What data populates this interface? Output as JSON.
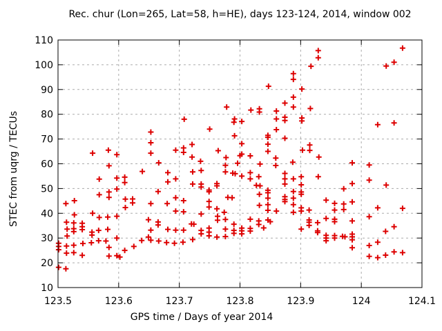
{
  "title": "Rec. chur (Lon=265, Lat=58, h=HE), days 123-124, 2014, window 002",
  "chart_data": {
    "type": "scatter",
    "title": "Rec. chur (Lon=265, Lat=58, h=HE), days 123-124, 2014, window 002",
    "xlabel": "GPS time / Days of year 2014",
    "ylabel": "STEC from uqrg / TECUs",
    "xlim": [
      123.5,
      124.1
    ],
    "ylim": [
      10,
      110
    ],
    "grid": true,
    "grid_color": "#aaaaaa",
    "legend": "none",
    "marker": {
      "shape": "plus",
      "color": "#dd0000",
      "size": 8,
      "stroke": 2
    },
    "xticks": {
      "values": [
        123.5,
        123.6,
        123.7,
        123.8,
        123.9,
        124.0,
        124.1
      ],
      "labels": [
        "123.5",
        "123.6",
        "123.7",
        "123.8",
        "123.9",
        "124",
        "124.1"
      ]
    },
    "yticks": {
      "values": [
        10,
        20,
        30,
        40,
        50,
        60,
        70,
        80,
        90,
        100,
        110
      ],
      "labels": [
        "10",
        "20",
        "30",
        "40",
        "50",
        "60",
        "70",
        "80",
        "90",
        "100",
        "110"
      ]
    },
    "points": [
      [
        123.557,
        64.3
      ],
      [
        123.583,
        65.5
      ],
      [
        123.597,
        63.7
      ],
      [
        123.778,
        82.9
      ],
      [
        123.708,
        78.0
      ],
      [
        123.791,
        78.1
      ],
      [
        123.79,
        76.8
      ],
      [
        123.75,
        74.0
      ],
      [
        123.653,
        72.8
      ],
      [
        123.791,
        71.3
      ],
      [
        123.653,
        68.5
      ],
      [
        123.694,
        65.5
      ],
      [
        123.707,
        66.4
      ],
      [
        123.707,
        64.6
      ],
      [
        123.721,
        67.8
      ],
      [
        123.653,
        64.3
      ],
      [
        123.764,
        65.3
      ],
      [
        123.721,
        62.7
      ],
      [
        123.735,
        61.0
      ],
      [
        123.777,
        62.5
      ],
      [
        123.666,
        60.4
      ],
      [
        123.796,
        60.2
      ],
      [
        123.929,
        105.7
      ],
      [
        123.929,
        102.8
      ],
      [
        123.917,
        99.4
      ],
      [
        123.888,
        96.4
      ],
      [
        123.888,
        94.1
      ],
      [
        123.847,
        91.3
      ],
      [
        123.902,
        90.2
      ],
      [
        123.888,
        86.9
      ],
      [
        123.874,
        84.5
      ],
      [
        123.888,
        82.9
      ],
      [
        123.818,
        81.7
      ],
      [
        123.832,
        82.2
      ],
      [
        123.832,
        80.9
      ],
      [
        123.86,
        81.3
      ],
      [
        123.916,
        82.3
      ],
      [
        123.86,
        78.1
      ],
      [
        123.874,
        78.8
      ],
      [
        123.874,
        77.5
      ],
      [
        123.803,
        77.1
      ],
      [
        123.902,
        78.5
      ],
      [
        123.902,
        77.3
      ],
      [
        123.86,
        73.8
      ],
      [
        123.846,
        71.5
      ],
      [
        123.846,
        70.7
      ],
      [
        123.874,
        70.3
      ],
      [
        123.803,
        68.1
      ],
      [
        123.846,
        67.9
      ],
      [
        123.915,
        67.6
      ],
      [
        123.846,
        65.0
      ],
      [
        123.903,
        65.5
      ],
      [
        123.915,
        65.4
      ],
      [
        123.803,
        63.9
      ],
      [
        123.8,
        63.3
      ],
      [
        123.817,
        63.2
      ],
      [
        123.93,
        62.7
      ],
      [
        123.859,
        62.3
      ],
      [
        124.068,
        106.7
      ],
      [
        124.054,
        101.0
      ],
      [
        124.041,
        99.5
      ],
      [
        124.027,
        75.8
      ],
      [
        124.054,
        76.5
      ],
      [
        123.584,
        59.2
      ],
      [
        123.639,
        56.9
      ],
      [
        123.568,
        53.8
      ],
      [
        123.597,
        54.2
      ],
      [
        123.61,
        54.6
      ],
      [
        123.61,
        52.4
      ],
      [
        123.568,
        47.5
      ],
      [
        123.584,
        48.6
      ],
      [
        123.584,
        46.4
      ],
      [
        123.597,
        49.8
      ],
      [
        123.513,
        43.9
      ],
      [
        123.527,
        45.1
      ],
      [
        123.623,
        45.8
      ],
      [
        123.623,
        44.2
      ],
      [
        123.611,
        42.3
      ],
      [
        123.611,
        45.7
      ],
      [
        123.527,
        39.4
      ],
      [
        123.557,
        40.0
      ],
      [
        123.568,
        38.3
      ],
      [
        123.582,
        38.5
      ],
      [
        123.597,
        38.8
      ],
      [
        123.515,
        33.6
      ],
      [
        123.526,
        33.8
      ],
      [
        123.526,
        32.6
      ],
      [
        123.54,
        36.0
      ],
      [
        123.54,
        34.6
      ],
      [
        123.54,
        33.4
      ],
      [
        123.515,
        30.8
      ],
      [
        123.556,
        32.4
      ],
      [
        123.556,
        31.2
      ],
      [
        123.567,
        33.1
      ],
      [
        123.582,
        33.5
      ],
      [
        123.597,
        30.0
      ],
      [
        123.501,
        27.9
      ],
      [
        123.501,
        26.6
      ],
      [
        123.501,
        25.3
      ],
      [
        123.514,
        26.8
      ],
      [
        123.514,
        23.9
      ],
      [
        123.513,
        17.6
      ],
      [
        123.501,
        18.2
      ],
      [
        123.526,
        36.1
      ],
      [
        123.514,
        36.4
      ],
      [
        123.526,
        27.1
      ],
      [
        123.526,
        24.1
      ],
      [
        123.541,
        27.8
      ],
      [
        123.54,
        23.0
      ],
      [
        123.555,
        28.1
      ],
      [
        123.567,
        28.9
      ],
      [
        123.579,
        28.8
      ],
      [
        123.584,
        26.2
      ],
      [
        123.584,
        22.7
      ],
      [
        123.597,
        22.9
      ],
      [
        123.602,
        22.3
      ],
      [
        123.61,
        25.0
      ],
      [
        123.625,
        26.6
      ],
      [
        123.638,
        29.0
      ],
      [
        123.653,
        29.1
      ],
      [
        123.681,
        56.4
      ],
      [
        123.681,
        52.7
      ],
      [
        123.694,
        53.9
      ],
      [
        123.722,
        56.7
      ],
      [
        123.736,
        57.3
      ],
      [
        123.776,
        59.4
      ],
      [
        123.776,
        56.7
      ],
      [
        123.788,
        56.2
      ],
      [
        123.792,
        56.0
      ],
      [
        123.722,
        51.8
      ],
      [
        123.736,
        51.8
      ],
      [
        123.736,
        50.6
      ],
      [
        123.762,
        52.0
      ],
      [
        123.762,
        51.1
      ],
      [
        123.749,
        49.4
      ],
      [
        123.749,
        48.7
      ],
      [
        123.665,
        48.8
      ],
      [
        123.694,
        46.3
      ],
      [
        123.707,
        45.1
      ],
      [
        123.78,
        46.4
      ],
      [
        123.787,
        46.3
      ],
      [
        123.653,
        43.9
      ],
      [
        123.68,
        43.9
      ],
      [
        123.749,
        44.8
      ],
      [
        123.749,
        42.5
      ],
      [
        123.762,
        41.8
      ],
      [
        123.694,
        40.9
      ],
      [
        123.707,
        40.6
      ],
      [
        123.736,
        39.7
      ],
      [
        123.649,
        37.4
      ],
      [
        123.653,
        33.2
      ],
      [
        123.649,
        30.4
      ],
      [
        123.665,
        36.5
      ],
      [
        123.665,
        35.3
      ],
      [
        123.681,
        33.5
      ],
      [
        123.694,
        33.2
      ],
      [
        123.707,
        33.2
      ],
      [
        123.72,
        35.7
      ],
      [
        123.724,
        35.6
      ],
      [
        123.736,
        33.1
      ],
      [
        123.736,
        31.7
      ],
      [
        123.749,
        34.0
      ],
      [
        123.749,
        32.4
      ],
      [
        123.749,
        30.9
      ],
      [
        123.762,
        30.4
      ],
      [
        123.763,
        38.8
      ],
      [
        123.763,
        37.2
      ],
      [
        123.776,
        37.5
      ],
      [
        123.776,
        33.6
      ],
      [
        123.776,
        30.6
      ],
      [
        123.79,
        35.6
      ],
      [
        123.79,
        33.1
      ],
      [
        123.79,
        31.9
      ],
      [
        123.85,
        36.6
      ],
      [
        123.722,
        29.4
      ],
      [
        123.666,
        28.8
      ],
      [
        123.679,
        28.2
      ],
      [
        123.692,
        27.9
      ],
      [
        123.706,
        28.3
      ],
      [
        123.774,
        40.4
      ],
      [
        123.839,
        34.1
      ],
      [
        123.833,
        59.9
      ],
      [
        123.859,
        59.3
      ],
      [
        123.887,
        60.6
      ],
      [
        123.803,
        55.0
      ],
      [
        123.817,
        56.4
      ],
      [
        123.817,
        53.9
      ],
      [
        123.831,
        54.8
      ],
      [
        123.874,
        56.1
      ],
      [
        123.874,
        53.9
      ],
      [
        123.874,
        51.8
      ],
      [
        123.888,
        53.9
      ],
      [
        123.901,
        54.8
      ],
      [
        123.929,
        54.8
      ],
      [
        123.827,
        51.3
      ],
      [
        123.833,
        51.1
      ],
      [
        123.901,
        51.5
      ],
      [
        123.832,
        47.7
      ],
      [
        123.846,
        49.3
      ],
      [
        123.846,
        48.3
      ],
      [
        123.846,
        46.1
      ],
      [
        123.874,
        46.7
      ],
      [
        123.874,
        45.6
      ],
      [
        123.874,
        44.7
      ],
      [
        123.888,
        48.8
      ],
      [
        123.888,
        46.1
      ],
      [
        123.888,
        43.5
      ],
      [
        123.901,
        48.6
      ],
      [
        123.901,
        47.7
      ],
      [
        123.832,
        43.2
      ],
      [
        123.846,
        43.5
      ],
      [
        123.846,
        41.2
      ],
      [
        123.86,
        40.9
      ],
      [
        123.888,
        40.4
      ],
      [
        123.901,
        42.2
      ],
      [
        123.901,
        40.9
      ],
      [
        123.914,
        41.3
      ],
      [
        123.942,
        45.3
      ],
      [
        123.817,
        37.6
      ],
      [
        123.831,
        36.9
      ],
      [
        123.831,
        35.5
      ],
      [
        123.846,
        37.3
      ],
      [
        123.803,
        34.0
      ],
      [
        123.803,
        32.9
      ],
      [
        123.803,
        31.7
      ],
      [
        123.817,
        33.9
      ],
      [
        123.817,
        32.8
      ],
      [
        123.901,
        33.6
      ],
      [
        123.914,
        37.3
      ],
      [
        123.914,
        36.4
      ],
      [
        123.914,
        35.1
      ],
      [
        123.928,
        36.2
      ],
      [
        123.928,
        32.9
      ],
      [
        123.928,
        32.2
      ],
      [
        123.942,
        37.9
      ],
      [
        123.942,
        31.1
      ],
      [
        123.942,
        30.0
      ],
      [
        123.942,
        28.9
      ],
      [
        123.985,
        60.4
      ],
      [
        124.013,
        59.5
      ],
      [
        124.013,
        53.4
      ],
      [
        123.985,
        52.0
      ],
      [
        123.971,
        49.9
      ],
      [
        124.041,
        51.4
      ],
      [
        123.956,
        44.0
      ],
      [
        123.956,
        41.3
      ],
      [
        123.971,
        43.8
      ],
      [
        123.971,
        41.5
      ],
      [
        124.027,
        42.2
      ],
      [
        124.068,
        42.0
      ],
      [
        124.013,
        38.6
      ],
      [
        124.054,
        34.6
      ],
      [
        124.04,
        32.7
      ],
      [
        124.013,
        27.0
      ],
      [
        124.027,
        28.3
      ],
      [
        124.013,
        22.6
      ],
      [
        124.027,
        22.1
      ],
      [
        124.04,
        23.1
      ],
      [
        124.054,
        24.4
      ],
      [
        124.068,
        24.1
      ],
      [
        123.956,
        37.6
      ],
      [
        123.956,
        36.6
      ],
      [
        123.956,
        31.0
      ],
      [
        123.956,
        30.0
      ],
      [
        123.969,
        30.7
      ],
      [
        123.973,
        30.5
      ],
      [
        123.985,
        44.6
      ],
      [
        123.985,
        36.9
      ],
      [
        123.985,
        31.6
      ],
      [
        123.985,
        30.5
      ],
      [
        123.985,
        29.3
      ],
      [
        123.985,
        26.1
      ]
    ]
  }
}
